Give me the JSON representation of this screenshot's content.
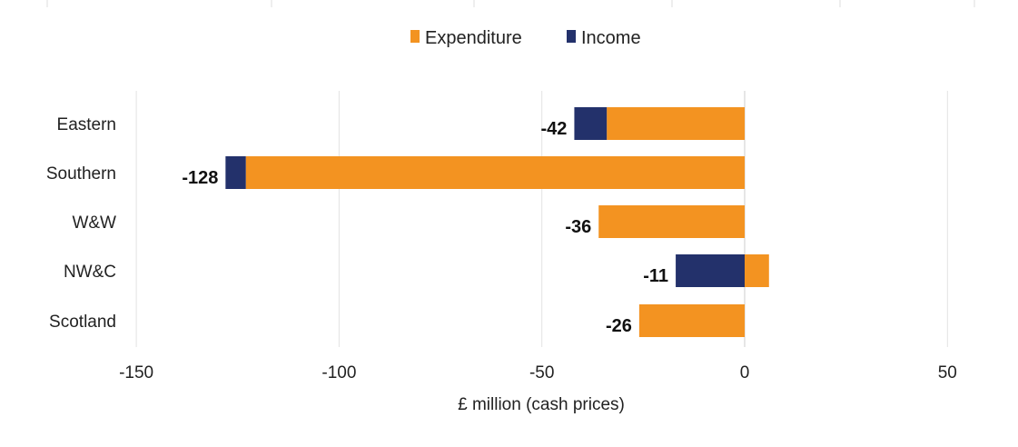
{
  "chart_data": {
    "type": "bar",
    "orientation": "horizontal",
    "stacked": true,
    "categories": [
      "Eastern",
      "Southern",
      "W&W",
      "NW&C",
      "Scotland"
    ],
    "series": [
      {
        "name": "Expenditure",
        "color": "#F39321",
        "values": [
          -34,
          -123,
          -36,
          6,
          -26
        ]
      },
      {
        "name": "Income",
        "color": "#23316B",
        "values": [
          -8,
          -5,
          0,
          -17,
          0
        ]
      }
    ],
    "data_labels": [
      "-42",
      "-128",
      "-36",
      "-11",
      "-26"
    ],
    "xlabel": "£ million (cash prices)",
    "xlim": [
      -150,
      67
    ],
    "xticks": [
      -150,
      -100,
      -50,
      0,
      50
    ],
    "xtick_labels": [
      "-150",
      "-100",
      "-50",
      "0",
      "50"
    ],
    "grid": "vertical",
    "legend_position": "top"
  }
}
